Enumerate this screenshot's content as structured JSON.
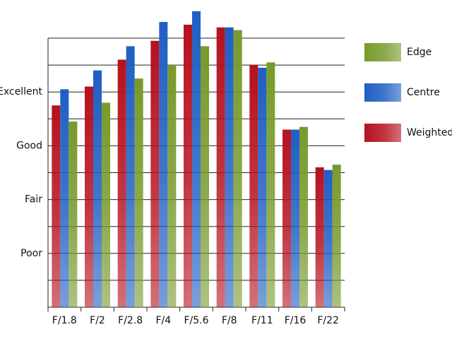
{
  "chart_data": {
    "type": "bar",
    "categories": [
      "F/1.8",
      "F/2",
      "F/2.8",
      "F/4",
      "F/5.6",
      "F/8",
      "F/11",
      "F/16",
      "F/22"
    ],
    "series": [
      {
        "name": "Weighted",
        "color": "#b5121f",
        "values": [
          7.5,
          8.2,
          9.2,
          9.9,
          10.5,
          10.4,
          9.0,
          6.6,
          5.2
        ]
      },
      {
        "name": "Centre",
        "color": "#1f5fc4",
        "values": [
          8.1,
          8.8,
          9.7,
          10.6,
          11.0,
          10.4,
          8.9,
          6.6,
          5.1
        ]
      },
      {
        "name": "Edge",
        "color": "#789a2c",
        "values": [
          6.9,
          7.6,
          8.5,
          9.0,
          9.7,
          10.3,
          9.1,
          6.7,
          5.3
        ]
      }
    ],
    "ylim": [
      0,
      10
    ],
    "yticks": [
      {
        "value": 2,
        "label": "Poor"
      },
      {
        "value": 4,
        "label": "Fair"
      },
      {
        "value": 6,
        "label": "Good"
      },
      {
        "value": 8,
        "label": "Excellent"
      }
    ],
    "ygrid": [
      1,
      2,
      3,
      4,
      5,
      6,
      7,
      8,
      9,
      10
    ],
    "grid": true,
    "legend": "right"
  }
}
